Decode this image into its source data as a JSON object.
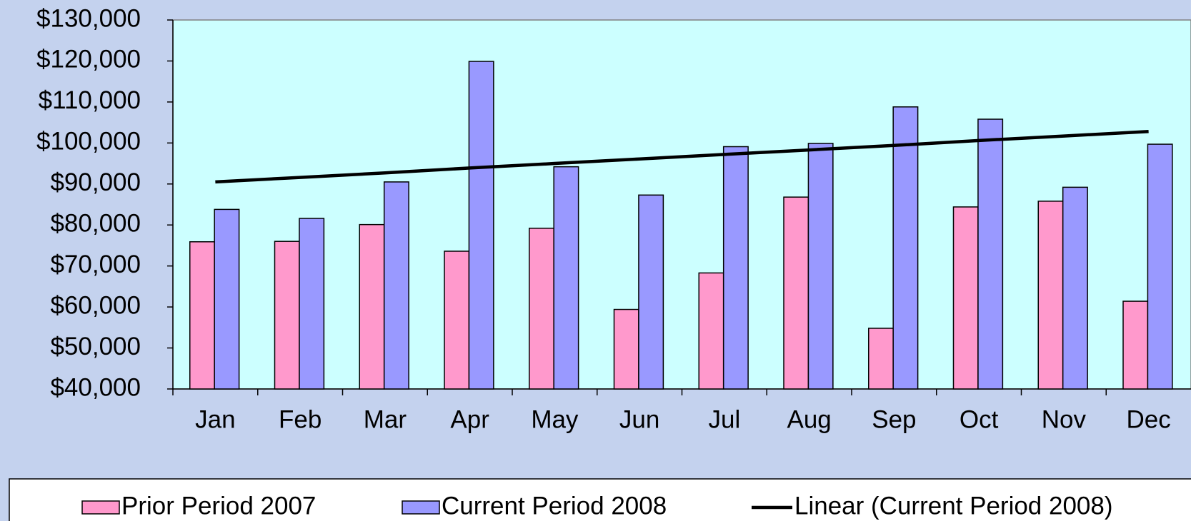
{
  "chart_data": {
    "type": "bar",
    "categories": [
      "Jan",
      "Feb",
      "Mar",
      "Apr",
      "May",
      "Jun",
      "Jul",
      "Aug",
      "Sep",
      "Oct",
      "Nov",
      "Dec"
    ],
    "series": [
      {
        "name": "Prior Period 2007",
        "color": "#ff99cc",
        "values": [
          75900,
          76000,
          80100,
          73600,
          79200,
          59400,
          68300,
          86800,
          54800,
          84400,
          85800,
          61400
        ]
      },
      {
        "name": "Current Period 2008",
        "color": "#9999ff",
        "values": [
          83800,
          81600,
          90500,
          119900,
          94200,
          87300,
          99100,
          99900,
          108800,
          105800,
          89200,
          99700
        ]
      }
    ],
    "trendline": {
      "name": "Linear (Current Period 2008)",
      "color": "#000000",
      "values": [
        90500,
        91600,
        92700,
        93900,
        95000,
        96100,
        97200,
        98300,
        99400,
        100600,
        101700,
        102800
      ]
    },
    "ylim": [
      40000,
      130000
    ],
    "yticks": [
      {
        "value": 40000,
        "label": "$40,000"
      },
      {
        "value": 50000,
        "label": "$50,000"
      },
      {
        "value": 60000,
        "label": "$60,000"
      },
      {
        "value": 70000,
        "label": "$70,000"
      },
      {
        "value": 80000,
        "label": "$80,000"
      },
      {
        "value": 90000,
        "label": "$90,000"
      },
      {
        "value": 100000,
        "label": "$100,000"
      },
      {
        "value": 110000,
        "label": "$110,000"
      },
      {
        "value": 120000,
        "label": "$120,000"
      },
      {
        "value": 130000,
        "label": "$130,000"
      }
    ],
    "plot_background": "#ccffff",
    "legend": "bottom"
  }
}
